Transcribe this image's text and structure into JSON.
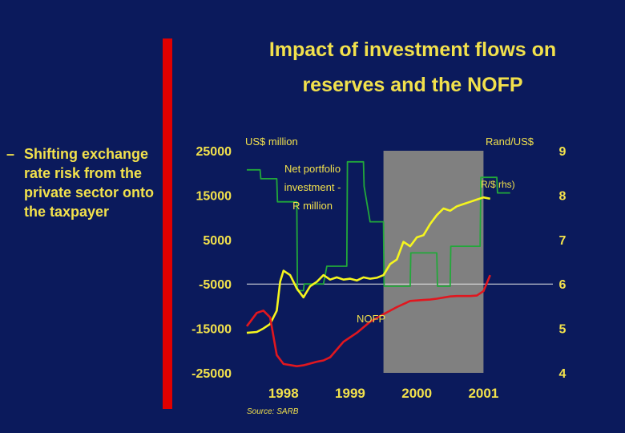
{
  "title_line1": "Impact of investment flows on",
  "title_line2": "reserves and the NOFP",
  "bullet": {
    "dash": "–",
    "text": "Shifting exchange rate risk from the private sector onto the taxpayer"
  },
  "colors": {
    "background": "#0b1a5c",
    "text": "#f2e14c",
    "red_bar": "#e00000",
    "shade": "#808080",
    "green": "#22a83a",
    "yellow": "#f5f51e",
    "red": "#e0171f"
  },
  "chart_data": {
    "type": "line",
    "left_axis_label": "US$ million",
    "right_axis_label": "Rand/US$",
    "left_ticks": [
      25000,
      15000,
      5000,
      -5000,
      -15000,
      -25000
    ],
    "right_ticks": [
      9,
      8,
      7,
      6,
      5,
      4
    ],
    "left_ylim": [
      -25000,
      25000
    ],
    "right_ylim": [
      4,
      9
    ],
    "x_labels": [
      "1998",
      "1999",
      "2000",
      "2001"
    ],
    "x_label_positions": [
      1998.3,
      1999.3,
      2000.3,
      2001.3
    ],
    "xlim": [
      1997.75,
      2001.8
    ],
    "shaded_period": [
      1999.8,
      2001.3
    ],
    "source": "Source: SARB",
    "annotations": {
      "portfolio": [
        "Net portfolio",
        "investment -",
        "R million"
      ],
      "rand": "R/$ rhs)",
      "nofp": "NOFP"
    },
    "series": [
      {
        "name": "Net portfolio investment",
        "axis": "left",
        "color": "green",
        "x": [
          1997.75,
          1997.95,
          1997.96,
          1998.2,
          1998.21,
          1998.3,
          1998.5,
          1998.51,
          1998.6,
          1998.61,
          1998.9,
          1998.95,
          1999.25,
          1999.26,
          1999.5,
          1999.51,
          1999.6,
          1999.8,
          1999.81,
          2000.2,
          2000.21,
          2000.4,
          2000.6,
          2000.61,
          2000.8,
          2000.81,
          2001.25,
          2001.26,
          2001.5,
          2001.51,
          2001.7
        ],
        "y": [
          20700,
          20700,
          18700,
          18700,
          13500,
          13500,
          13500,
          -6500,
          -6500,
          -5000,
          -5000,
          -1000,
          -1000,
          22500,
          22500,
          17000,
          9000,
          9000,
          -5500,
          -5500,
          2000,
          2000,
          2000,
          -5500,
          -5500,
          3500,
          3500,
          19000,
          19000,
          15500,
          15500
        ]
      },
      {
        "name": "Rand/US$ (rhs)",
        "axis": "right",
        "color": "yellow",
        "x": [
          1997.75,
          1997.9,
          1998.0,
          1998.1,
          1998.2,
          1998.25,
          1998.3,
          1998.4,
          1998.5,
          1998.6,
          1998.7,
          1998.8,
          1998.9,
          1999.0,
          1999.1,
          1999.2,
          1999.3,
          1999.4,
          1999.5,
          1999.6,
          1999.7,
          1999.8,
          1999.9,
          2000.0,
          2000.1,
          2000.2,
          2000.3,
          2000.4,
          2000.5,
          2000.6,
          2000.7,
          2000.8,
          2000.9,
          2001.0,
          2001.1,
          2001.2,
          2001.3,
          2001.4
        ],
        "y": [
          4.9,
          4.92,
          5.0,
          5.1,
          5.4,
          6.05,
          6.3,
          6.2,
          5.9,
          5.7,
          5.95,
          6.05,
          6.2,
          6.1,
          6.15,
          6.1,
          6.12,
          6.08,
          6.15,
          6.12,
          6.14,
          6.2,
          6.45,
          6.55,
          6.95,
          6.85,
          7.05,
          7.1,
          7.35,
          7.55,
          7.7,
          7.65,
          7.75,
          7.8,
          7.85,
          7.9,
          7.95,
          7.92
        ]
      },
      {
        "name": "NOFP",
        "axis": "left",
        "color": "red",
        "x": [
          1997.75,
          1997.8,
          1997.9,
          1998.0,
          1998.1,
          1998.2,
          1998.3,
          1998.5,
          1998.6,
          1998.8,
          1998.9,
          1999.0,
          1999.2,
          1999.4,
          1999.6,
          1999.8,
          2000.0,
          2000.2,
          2000.4,
          2000.5,
          2000.6,
          2000.8,
          2000.9,
          2001.1,
          2001.2,
          2001.3,
          2001.4
        ],
        "y": [
          -14500,
          -13500,
          -11500,
          -11000,
          -12500,
          -21000,
          -23000,
          -23500,
          -23300,
          -22500,
          -22200,
          -21500,
          -18000,
          -16000,
          -13500,
          -11800,
          -10200,
          -8800,
          -8600,
          -8500,
          -8300,
          -7800,
          -7700,
          -7700,
          -7600,
          -6600,
          -3000
        ]
      }
    ]
  }
}
